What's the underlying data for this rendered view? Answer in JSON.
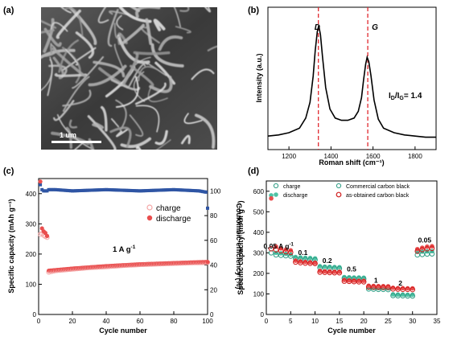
{
  "panel_labels": {
    "a": "(a)",
    "b": "(b)",
    "c": "(c)",
    "d": "(d)"
  },
  "sem": {
    "scale_label": "1 um"
  },
  "colors": {
    "discharge": "#e94e4e",
    "charge": "#f4a6a6",
    "efficiency": "#2f55a4",
    "dark_red": "#d01d1d",
    "teal": "#4fc3a5",
    "teal_dark": "#2e9c84",
    "dash": "#e0282e"
  },
  "chart_data": [
    {
      "type": "line",
      "panel": "(b)",
      "xlabel": "Roman shift (cm⁻¹)",
      "ylabel": "Intensity (a.u.)",
      "xlim": [
        1100,
        1900
      ],
      "xticks": [
        1200,
        1400,
        1600,
        1800
      ],
      "annotations": {
        "D": "D",
        "G": "G",
        "ratio": "I_D/I_G= 1.4",
        "D_position": 1340,
        "G_position": 1575
      },
      "series": [
        {
          "x": [
            1100,
            1150,
            1200,
            1250,
            1280,
            1300,
            1315,
            1325,
            1335,
            1342,
            1350,
            1360,
            1375,
            1395,
            1420,
            1450,
            1480,
            1510,
            1530,
            1545,
            1555,
            1565,
            1572,
            1580,
            1590,
            1605,
            1625,
            1650,
            1700,
            1750,
            1800,
            1850,
            1900
          ],
          "y": [
            0.02,
            0.03,
            0.05,
            0.09,
            0.18,
            0.32,
            0.55,
            0.78,
            0.95,
            1.0,
            0.92,
            0.72,
            0.45,
            0.26,
            0.18,
            0.16,
            0.16,
            0.18,
            0.24,
            0.36,
            0.52,
            0.66,
            0.72,
            0.68,
            0.56,
            0.34,
            0.17,
            0.09,
            0.05,
            0.03,
            0.02,
            0.01,
            0.01
          ]
        }
      ]
    },
    {
      "type": "scatter",
      "panel": "(c)",
      "xlabel": "Cycle number",
      "ylabel": "Specific capacity (mAh g⁻¹)",
      "ylabel_right": "Coulombic efficiency (%)",
      "xlim": [
        0,
        100
      ],
      "ylim": [
        0,
        450
      ],
      "ylim_right": [
        0,
        110
      ],
      "xticks": [
        0,
        20,
        40,
        60,
        80,
        100
      ],
      "yticks": [
        0,
        100,
        200,
        300,
        400
      ],
      "yticks_right": [
        0,
        20,
        40,
        60,
        80,
        100
      ],
      "rate_label": "1 A g⁻¹",
      "series": [
        {
          "name": "charge",
          "x": [
            1,
            2,
            3,
            4,
            5,
            6,
            10,
            20,
            30,
            40,
            50,
            60,
            70,
            80,
            90,
            100
          ],
          "y": [
            265,
            268,
            262,
            258,
            255,
            140,
            145,
            150,
            155,
            158,
            162,
            165,
            167,
            169,
            171,
            172
          ]
        },
        {
          "name": "discharge",
          "x": [
            1,
            2,
            3,
            4,
            5,
            6,
            10,
            20,
            30,
            40,
            50,
            60,
            70,
            80,
            90,
            100
          ],
          "y": [
            440,
            285,
            275,
            270,
            260,
            145,
            147,
            152,
            156,
            160,
            163,
            166,
            168,
            170,
            172,
            174
          ]
        },
        {
          "name": "coulombic efficiency",
          "x": [
            1,
            2,
            3,
            5,
            6,
            10,
            20,
            40,
            60,
            80,
            95,
            99,
            100
          ],
          "y": [
            105,
            101,
            100,
            100,
            101,
            101,
            100,
            101,
            100,
            101,
            100,
            99,
            86
          ]
        }
      ]
    },
    {
      "type": "scatter",
      "panel": "(d)",
      "xlabel": "Cycle number",
      "ylabel": "Specific capacity (mAh g⁻¹)",
      "xlim": [
        0,
        35
      ],
      "ylim": [
        0,
        650
      ],
      "xticks": [
        0,
        5,
        10,
        15,
        20,
        25,
        30,
        35
      ],
      "yticks": [
        0,
        100,
        200,
        300,
        400,
        500,
        600
      ],
      "legend": {
        "charge": "charge",
        "discharge": "discharge",
        "commercial": "Commercial carbon black",
        "obtained": "as-obtained carbon black"
      },
      "rate_labels": [
        {
          "text": "0.05 A g⁻¹",
          "x": 2.5,
          "y": 322
        },
        {
          "text": "0.1",
          "x": 7.5,
          "y": 290
        },
        {
          "text": "0.2",
          "x": 12.5,
          "y": 250
        },
        {
          "text": "0.5",
          "x": 17.5,
          "y": 210
        },
        {
          "text": "1",
          "x": 22.5,
          "y": 155
        },
        {
          "text": "2",
          "x": 27.5,
          "y": 140
        },
        {
          "text": "0.05",
          "x": 32.5,
          "y": 350
        }
      ],
      "series": [
        {
          "name": "commercial discharge",
          "x": [
            1,
            2,
            3,
            4,
            5,
            6,
            7,
            8,
            9,
            10,
            11,
            12,
            13,
            14,
            15,
            16,
            17,
            18,
            19,
            20,
            21,
            22,
            23,
            24,
            25,
            26,
            27,
            28,
            29,
            30,
            31,
            32,
            33,
            34
          ],
          "y": [
            580,
            300,
            298,
            295,
            292,
            280,
            278,
            276,
            275,
            273,
            235,
            233,
            232,
            231,
            230,
            182,
            181,
            180,
            180,
            179,
            130,
            129,
            128,
            128,
            127,
            98,
            97,
            97,
            96,
            96,
            305,
            306,
            307,
            308
          ]
        },
        {
          "name": "commercial charge",
          "x": [
            1,
            2,
            3,
            4,
            5,
            6,
            7,
            8,
            9,
            10,
            11,
            12,
            13,
            14,
            15,
            16,
            17,
            18,
            19,
            20,
            21,
            22,
            23,
            24,
            25,
            26,
            27,
            28,
            29,
            30,
            31,
            32,
            33,
            34
          ],
          "y": [
            300,
            290,
            288,
            286,
            284,
            272,
            270,
            268,
            267,
            266,
            228,
            227,
            226,
            225,
            224,
            176,
            175,
            174,
            174,
            173,
            124,
            123,
            122,
            122,
            121,
            92,
            91,
            91,
            90,
            90,
            290,
            292,
            294,
            295
          ]
        },
        {
          "name": "as-obtained discharge",
          "x": [
            1,
            2,
            3,
            4,
            5,
            6,
            7,
            8,
            9,
            10,
            11,
            12,
            13,
            14,
            15,
            16,
            17,
            18,
            19,
            20,
            21,
            22,
            23,
            24,
            25,
            26,
            27,
            28,
            29,
            30,
            31,
            32,
            33,
            34
          ],
          "y": [
            565,
            330,
            322,
            316,
            312,
            262,
            258,
            256,
            254,
            252,
            212,
            210,
            209,
            208,
            208,
            168,
            166,
            165,
            164,
            164,
            140,
            139,
            138,
            138,
            137,
            130,
            128,
            128,
            127,
            127,
            318,
            325,
            330,
            332
          ]
        },
        {
          "name": "as-obtained charge",
          "x": [
            1,
            2,
            3,
            4,
            5,
            6,
            7,
            8,
            9,
            10,
            11,
            12,
            13,
            14,
            15,
            16,
            17,
            18,
            19,
            20,
            21,
            22,
            23,
            24,
            25,
            26,
            27,
            28,
            29,
            30,
            31,
            32,
            33,
            34
          ],
          "y": [
            320,
            315,
            310,
            305,
            302,
            255,
            252,
            250,
            249,
            248,
            206,
            205,
            204,
            203,
            203,
            162,
            161,
            160,
            159,
            159,
            134,
            133,
            133,
            132,
            132,
            124,
            123,
            122,
            122,
            121,
            308,
            316,
            320,
            322
          ]
        }
      ]
    }
  ]
}
